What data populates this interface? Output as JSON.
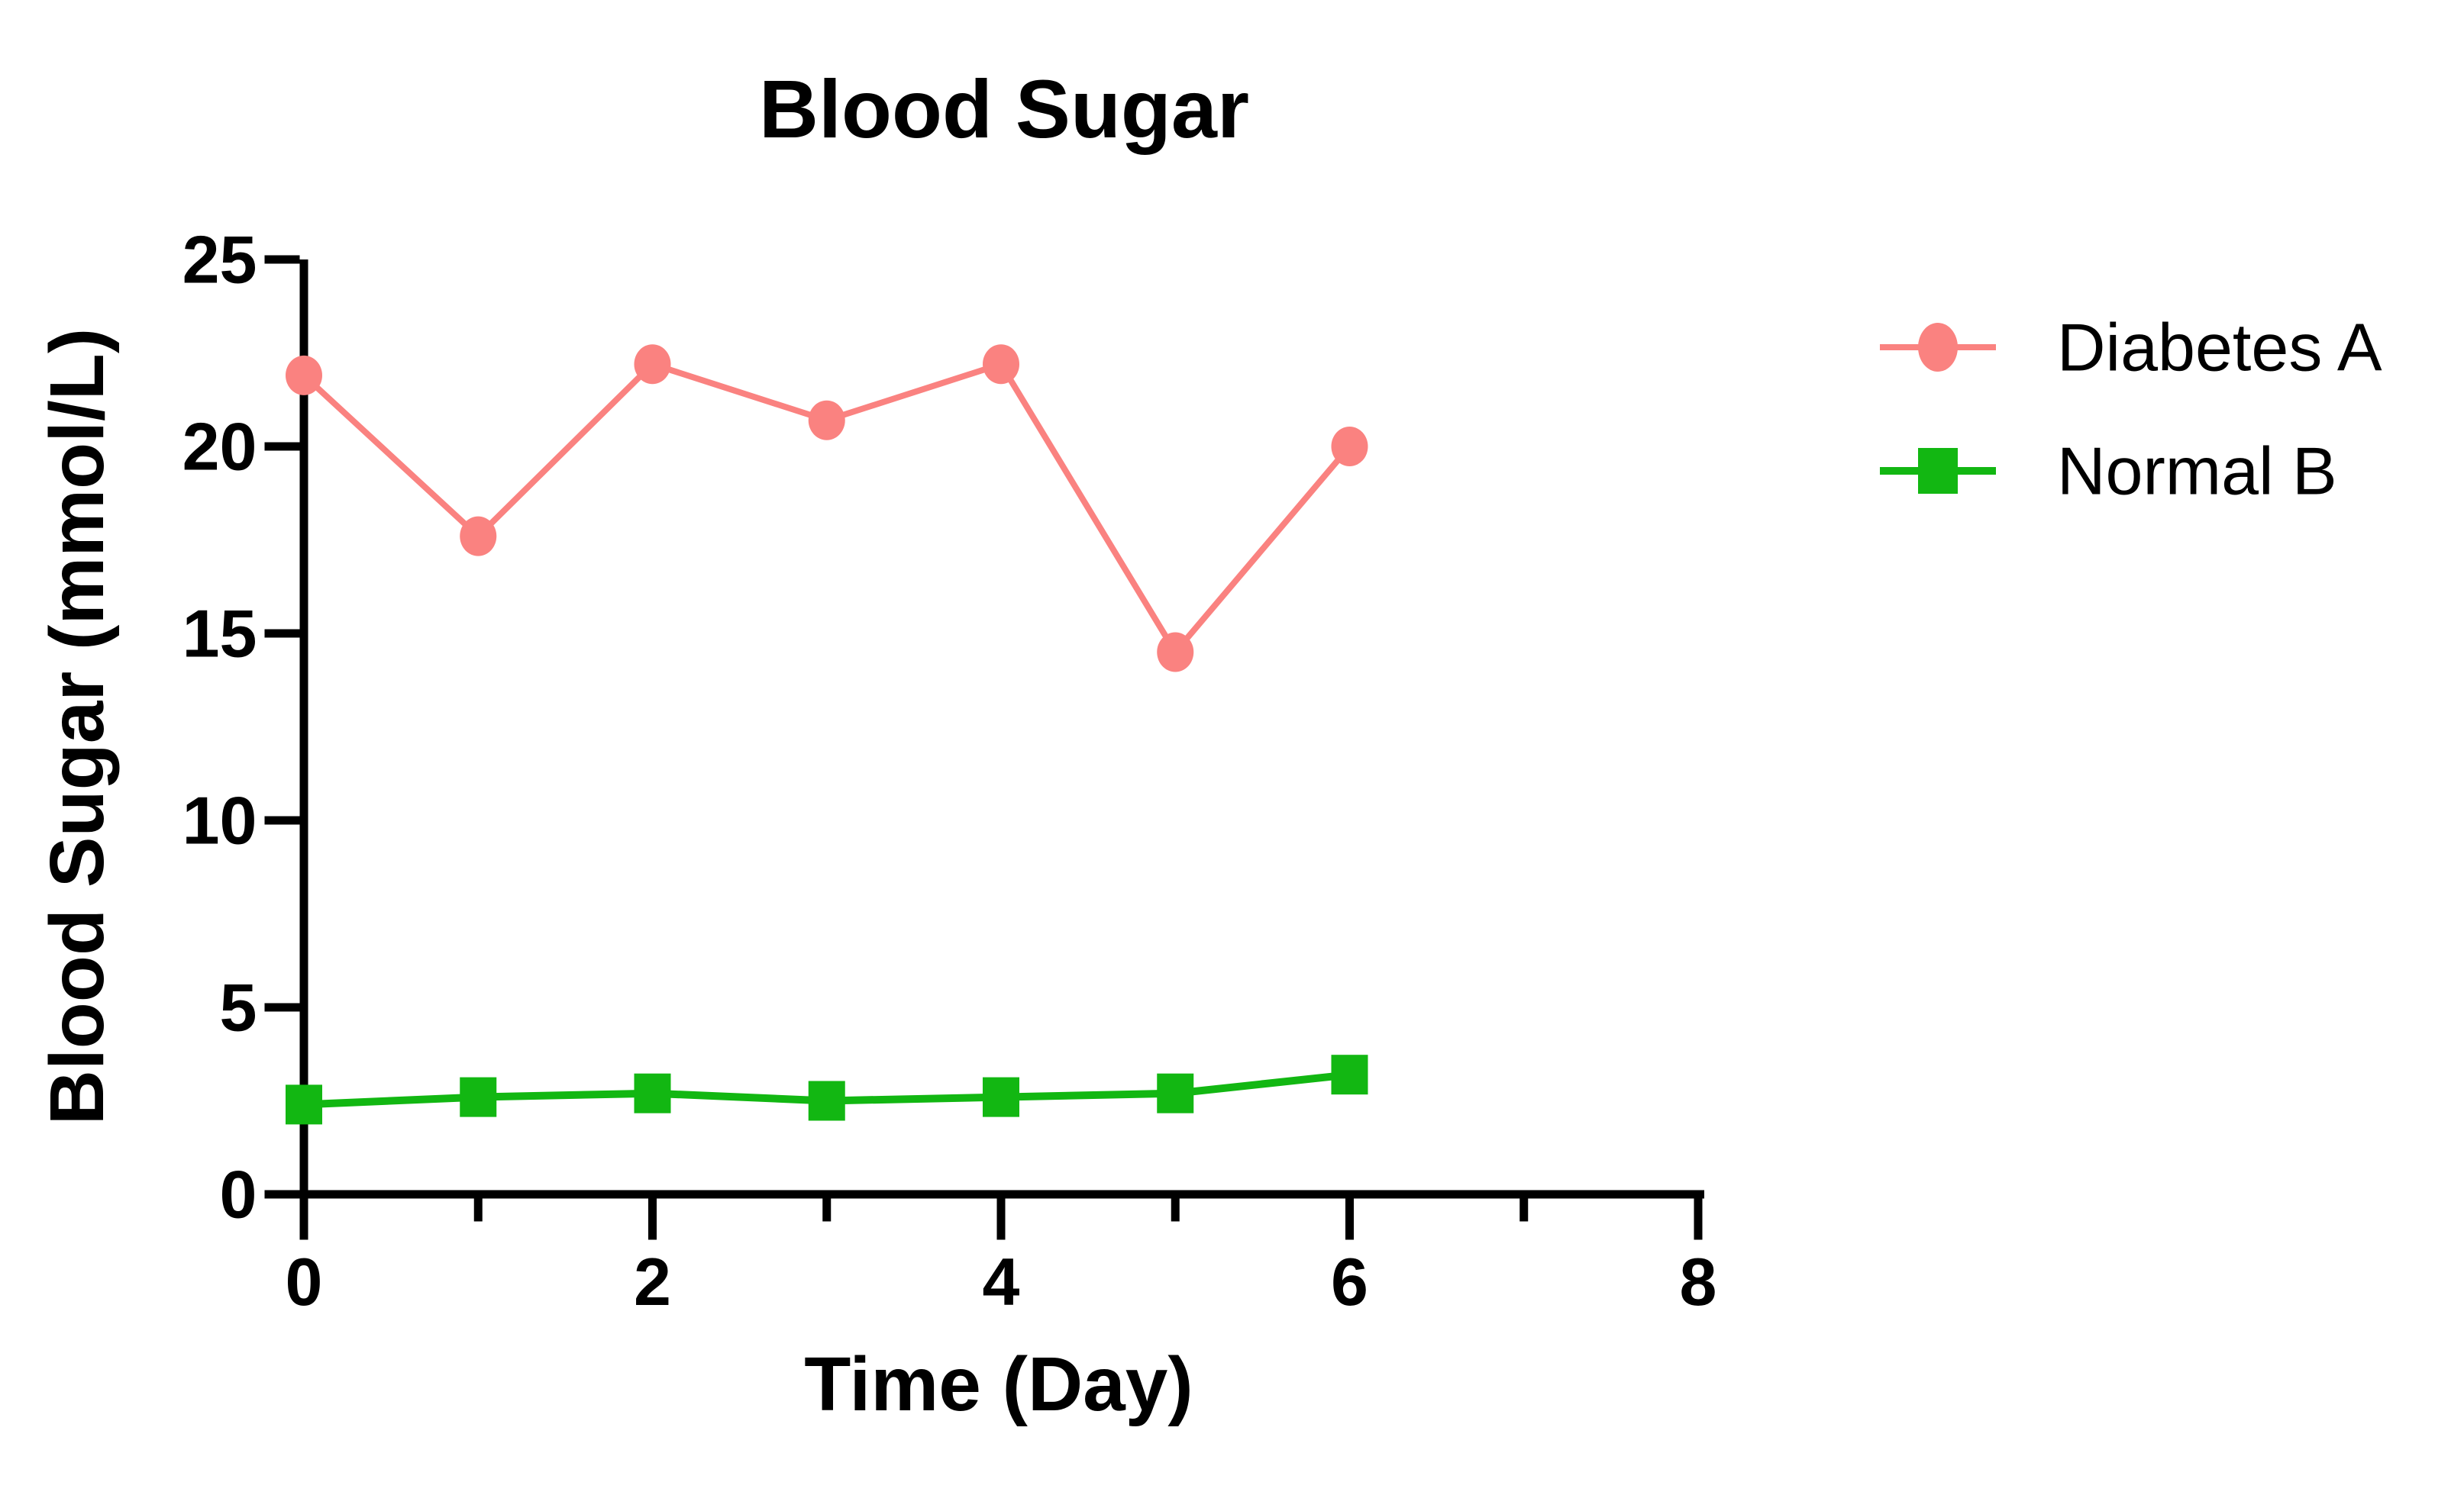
{
  "chart_data": {
    "type": "line",
    "title": "Blood Sugar",
    "xlabel": "Time (Day)",
    "ylabel": "Blood Sugar (mmol/L)",
    "x": [
      0,
      1,
      2,
      3,
      4,
      5,
      6
    ],
    "series": [
      {
        "name": "Diabetes A",
        "marker": "circle",
        "color": "#FA8280",
        "values": [
          21.9,
          17.6,
          22.2,
          20.7,
          22.2,
          14.5,
          20.0
        ]
      },
      {
        "name": "Normal B",
        "marker": "square",
        "color": "#12B712",
        "values": [
          2.4,
          2.6,
          2.7,
          2.5,
          2.6,
          2.7,
          3.2
        ]
      }
    ],
    "xlim": [
      0,
      8
    ],
    "ylim": [
      0,
      25
    ],
    "x_major_ticks": [
      0,
      2,
      4,
      6,
      8
    ],
    "x_major_tick_labels": [
      "0",
      "2",
      "4",
      "6",
      "8"
    ],
    "x_minor_ticks": [
      1,
      3,
      5,
      7
    ],
    "y_ticks": [
      0,
      5,
      10,
      15,
      20,
      25
    ],
    "y_tick_labels": [
      "0",
      "5",
      "10",
      "15",
      "20",
      "25"
    ],
    "grid": false,
    "legend_position": "right",
    "axis_color": "#000000",
    "background_color": "#FFFFFF"
  },
  "legend": {
    "items": [
      {
        "label": "Diabetes A",
        "color": "#FA8280",
        "marker": "circle"
      },
      {
        "label": "Normal B",
        "color": "#12B712",
        "marker": "square"
      }
    ]
  }
}
